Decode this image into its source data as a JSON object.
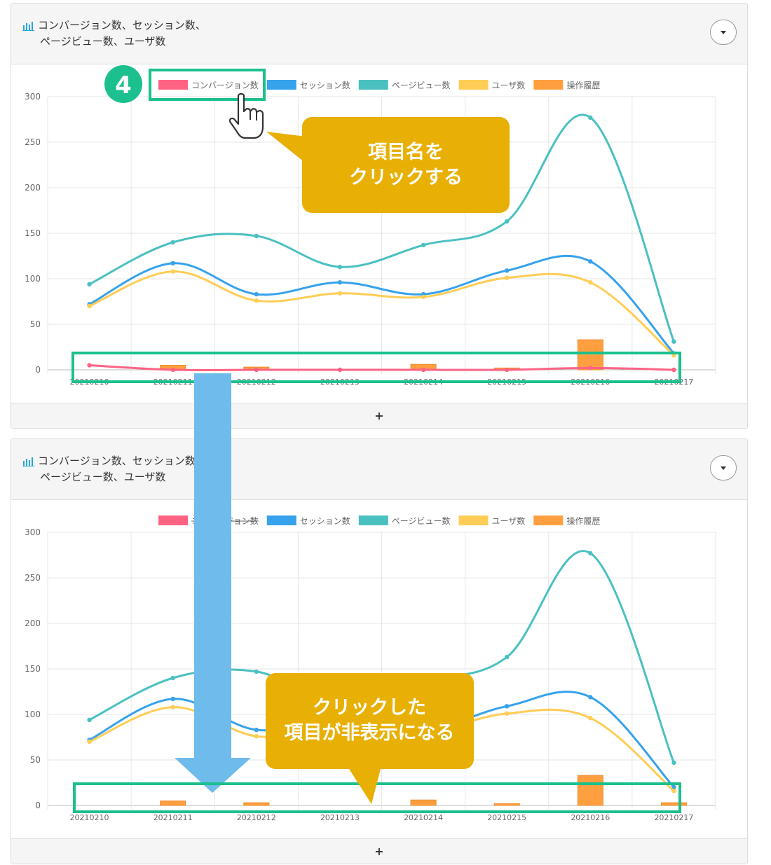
{
  "panels": [
    {
      "title_line1": "コンバージョン数、セッション数、",
      "title_line2": "ページビュー数、ユーザ数",
      "footer": "+"
    },
    {
      "title_line1": "コンバージョン数、セッション数、",
      "title_line2": "ページビュー数、ユーザ数",
      "footer": "+"
    }
  ],
  "annotations": {
    "step_number": "4",
    "callout_top": [
      "項目名を",
      "クリックする"
    ],
    "callout_bottom": [
      "クリックした",
      "項目が非表示になる"
    ],
    "highlight_color": "#1bc08e",
    "callout_color": "#e8b004",
    "arrow_color": "#6ebbec"
  },
  "chart_data": [
    {
      "type": "line",
      "categories": [
        "20210210",
        "20210211",
        "20210212",
        "20210213",
        "20210214",
        "20210215",
        "20210216",
        "20210217"
      ],
      "ylim": [
        0,
        300
      ],
      "yticks": [
        0,
        50,
        100,
        150,
        200,
        250,
        300
      ],
      "grid": true,
      "legend_position": "top",
      "series": [
        {
          "name": "コンバージョン数",
          "type": "line",
          "color": "#ff6384",
          "hidden": false,
          "values": [
            5,
            0,
            0,
            0,
            0,
            0,
            2,
            0
          ]
        },
        {
          "name": "セッション数",
          "type": "line",
          "color": "#36a2eb",
          "hidden": false,
          "values": [
            72,
            117,
            83,
            96,
            83,
            109,
            119,
            18
          ]
        },
        {
          "name": "ページビュー数",
          "type": "line",
          "color": "#4bc0c0",
          "hidden": false,
          "values": [
            94,
            140,
            147,
            113,
            137,
            163,
            277,
            31
          ]
        },
        {
          "name": "ユーザ数",
          "type": "line",
          "color": "#ffcd56",
          "hidden": false,
          "values": [
            70,
            108,
            76,
            84,
            80,
            101,
            96,
            16
          ]
        },
        {
          "name": "操作履歴",
          "type": "bar",
          "color": "#ff9f40",
          "hidden": false,
          "values": [
            0,
            5,
            3,
            0,
            6,
            2,
            33,
            0
          ]
        }
      ]
    },
    {
      "type": "line",
      "categories": [
        "20210210",
        "20210211",
        "20210212",
        "20210213",
        "20210214",
        "20210215",
        "20210216",
        "20210217"
      ],
      "ylim": [
        0,
        300
      ],
      "yticks": [
        0,
        50,
        100,
        150,
        200,
        250,
        300
      ],
      "grid": true,
      "legend_position": "top",
      "series": [
        {
          "name": "コンバージョン数",
          "type": "line",
          "color": "#ff6384",
          "hidden": true,
          "values": [
            5,
            0,
            0,
            0,
            0,
            0,
            2,
            0
          ]
        },
        {
          "name": "セッション数",
          "type": "line",
          "color": "#36a2eb",
          "hidden": false,
          "values": [
            72,
            117,
            83,
            96,
            83,
            109,
            119,
            20
          ]
        },
        {
          "name": "ページビュー数",
          "type": "line",
          "color": "#4bc0c0",
          "hidden": false,
          "values": [
            94,
            140,
            147,
            113,
            137,
            163,
            277,
            47
          ]
        },
        {
          "name": "ユーザ数",
          "type": "line",
          "color": "#ffcd56",
          "hidden": false,
          "values": [
            70,
            108,
            76,
            84,
            80,
            101,
            96,
            16
          ]
        },
        {
          "name": "操作履歴",
          "type": "bar",
          "color": "#ff9f40",
          "hidden": false,
          "values": [
            0,
            5,
            3,
            0,
            6,
            2,
            33,
            3
          ]
        }
      ]
    }
  ]
}
